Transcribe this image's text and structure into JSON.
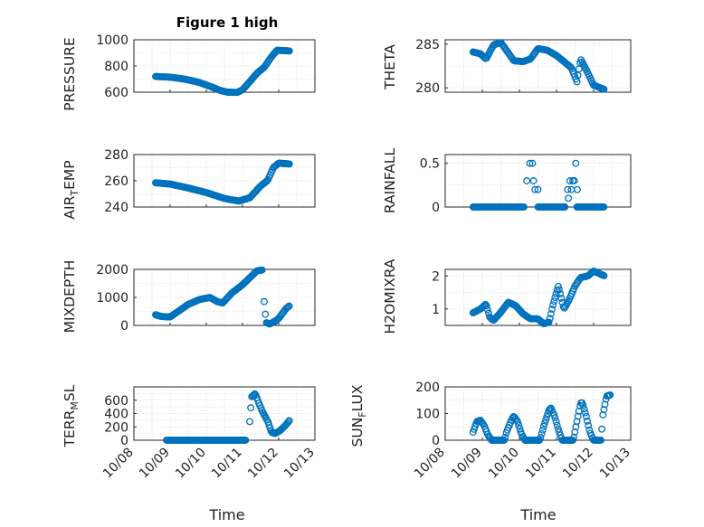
{
  "figure": {
    "title": "Figure 1 high",
    "xlabel": "Time",
    "x_ticklabels": [
      "10/08",
      "10/09",
      "10/10",
      "10/11",
      "10/12",
      "10/13"
    ],
    "marker_color": "#0072BD"
  },
  "chart_data": [
    {
      "type": "scatter",
      "title": "Figure 1 high",
      "ylabel": "PRESSURE",
      "ylim": [
        600,
        1000
      ],
      "yticks": [
        600,
        800,
        1000
      ],
      "xlim": [
        0,
        5
      ],
      "xlabel": "",
      "knots": [
        [
          0.6,
          720
        ],
        [
          1.0,
          715
        ],
        [
          1.4,
          700
        ],
        [
          1.8,
          675
        ],
        [
          2.1,
          645
        ],
        [
          2.4,
          612
        ],
        [
          2.6,
          600
        ],
        [
          2.85,
          598
        ],
        [
          3.0,
          618
        ],
        [
          3.2,
          680
        ],
        [
          3.4,
          745
        ],
        [
          3.6,
          790
        ],
        [
          3.8,
          870
        ],
        [
          3.95,
          920
        ],
        [
          4.3,
          915
        ]
      ],
      "grid": true
    },
    {
      "type": "scatter",
      "ylabel": "THETA",
      "ylim": [
        279.5,
        285.5
      ],
      "yticks": [
        280,
        285
      ],
      "xlim": [
        0,
        5
      ],
      "knots": [
        [
          0.75,
          284.1
        ],
        [
          0.95,
          283.9
        ],
        [
          1.1,
          283.3
        ],
        [
          1.3,
          284.9
        ],
        [
          1.5,
          285.2
        ],
        [
          1.7,
          284.0
        ],
        [
          1.85,
          283.1
        ],
        [
          2.1,
          283.0
        ],
        [
          2.3,
          283.3
        ],
        [
          2.5,
          284.5
        ],
        [
          2.75,
          284.3
        ],
        [
          3.0,
          283.7
        ],
        [
          3.2,
          283.0
        ],
        [
          3.4,
          282.3
        ],
        [
          3.55,
          280.7
        ],
        [
          3.65,
          283.3
        ],
        [
          3.8,
          282.1
        ],
        [
          4.0,
          280.3
        ],
        [
          4.3,
          279.8
        ]
      ],
      "grid": true
    },
    {
      "type": "scatter",
      "ylabel": "AIR_TEMP",
      "ylim": [
        240,
        280
      ],
      "yticks": [
        240,
        260,
        280
      ],
      "xlim": [
        0,
        5
      ],
      "knots": [
        [
          0.6,
          258.5
        ],
        [
          1.0,
          257.5
        ],
        [
          1.5,
          254.5
        ],
        [
          2.0,
          251
        ],
        [
          2.5,
          246.5
        ],
        [
          2.9,
          244.5
        ],
        [
          3.2,
          247
        ],
        [
          3.5,
          256
        ],
        [
          3.7,
          260.5
        ],
        [
          3.85,
          270
        ],
        [
          4.0,
          273.5
        ],
        [
          4.3,
          272.8
        ]
      ],
      "grid": true
    },
    {
      "type": "scatter",
      "ylabel": "RAINFALL",
      "ylim": [
        0,
        0.6
      ],
      "yticks": [
        0,
        0.5
      ],
      "xlim": [
        0,
        5
      ],
      "zero_runs": [
        [
          0.75,
          2.15
        ],
        [
          2.5,
          3.25
        ],
        [
          3.55,
          4.3
        ]
      ],
      "points": [
        [
          2.2,
          0.3
        ],
        [
          2.28,
          0.5
        ],
        [
          2.35,
          0.5
        ],
        [
          2.38,
          0.3
        ],
        [
          2.42,
          0.2
        ],
        [
          2.5,
          0.2
        ],
        [
          3.3,
          0.2
        ],
        [
          3.32,
          0.1
        ],
        [
          3.36,
          0.3
        ],
        [
          3.4,
          0.2
        ],
        [
          3.44,
          0.3
        ],
        [
          3.48,
          0.3
        ],
        [
          3.52,
          0.5
        ],
        [
          3.56,
          0.2
        ]
      ],
      "grid": true
    },
    {
      "type": "scatter",
      "ylabel": "MIXDEPTH",
      "ylim": [
        0,
        2000
      ],
      "yticks": [
        0,
        1000,
        2000
      ],
      "xlim": [
        0,
        5
      ],
      "knots": [
        [
          0.6,
          380
        ],
        [
          0.75,
          320
        ],
        [
          1.0,
          300
        ],
        [
          1.2,
          480
        ],
        [
          1.5,
          750
        ],
        [
          1.8,
          920
        ],
        [
          2.1,
          1000
        ],
        [
          2.3,
          850
        ],
        [
          2.45,
          800
        ],
        [
          2.7,
          1150
        ],
        [
          3.0,
          1450
        ],
        [
          3.2,
          1700
        ],
        [
          3.4,
          1950
        ],
        [
          3.55,
          1980
        ]
      ],
      "knots2": [
        [
          3.6,
          850
        ],
        [
          3.65,
          100
        ],
        [
          3.75,
          50
        ],
        [
          3.9,
          150
        ],
        [
          4.0,
          250
        ],
        [
          4.2,
          600
        ],
        [
          4.3,
          700
        ]
      ],
      "grid": true
    },
    {
      "type": "scatter",
      "ylabel": "H2OMIXRA",
      "ylim": [
        0.5,
        2.2
      ],
      "yticks": [
        1,
        2
      ],
      "xlim": [
        0,
        5
      ],
      "knots": [
        [
          0.75,
          0.88
        ],
        [
          0.95,
          1.0
        ],
        [
          1.1,
          1.15
        ],
        [
          1.2,
          0.75
        ],
        [
          1.3,
          0.65
        ],
        [
          1.5,
          0.9
        ],
        [
          1.7,
          1.2
        ],
        [
          1.9,
          1.1
        ],
        [
          2.1,
          0.85
        ],
        [
          2.3,
          0.7
        ],
        [
          2.5,
          0.7
        ],
        [
          2.65,
          0.55
        ],
        [
          2.8,
          0.6
        ],
        [
          2.9,
          1.1
        ],
        [
          3.05,
          1.7
        ],
        [
          3.2,
          1.0
        ],
        [
          3.35,
          1.3
        ],
        [
          3.5,
          1.7
        ],
        [
          3.65,
          1.95
        ],
        [
          3.85,
          2.0
        ],
        [
          4.0,
          2.15
        ],
        [
          4.3,
          2.0
        ]
      ],
      "grid": true
    },
    {
      "type": "scatter",
      "ylabel": "TERR_MSL",
      "ylim": [
        0,
        800
      ],
      "yticks": [
        0,
        200,
        400,
        600
      ],
      "xlim": [
        0,
        5
      ],
      "zero_run": [
        0.9,
        3.1
      ],
      "knots": [
        [
          3.2,
          280
        ],
        [
          3.25,
          650
        ],
        [
          3.35,
          700
        ],
        [
          3.45,
          560
        ],
        [
          3.55,
          430
        ],
        [
          3.7,
          280
        ],
        [
          3.8,
          120
        ],
        [
          3.9,
          100
        ],
        [
          4.05,
          150
        ],
        [
          4.2,
          230
        ],
        [
          4.3,
          300
        ]
      ],
      "grid": true
    },
    {
      "type": "scatter",
      "ylabel": "SUN_FLUX",
      "ylim": [
        0,
        200
      ],
      "yticks": [
        0,
        100,
        200
      ],
      "xlim": [
        0,
        5
      ],
      "knots": [
        [
          0.75,
          30
        ],
        [
          0.85,
          70
        ],
        [
          0.95,
          75
        ],
        [
          1.05,
          55
        ],
        [
          1.15,
          20
        ],
        [
          1.25,
          0
        ],
        [
          1.6,
          0
        ],
        [
          1.65,
          30
        ],
        [
          1.8,
          80
        ],
        [
          1.85,
          90
        ],
        [
          1.95,
          70
        ],
        [
          2.05,
          25
        ],
        [
          2.15,
          0
        ],
        [
          2.55,
          0
        ],
        [
          2.65,
          50
        ],
        [
          2.8,
          115
        ],
        [
          2.85,
          120
        ],
        [
          2.95,
          90
        ],
        [
          3.05,
          40
        ],
        [
          3.15,
          0
        ],
        [
          3.45,
          0
        ],
        [
          3.55,
          70
        ],
        [
          3.65,
          140
        ],
        [
          3.7,
          140
        ],
        [
          3.8,
          90
        ],
        [
          3.9,
          30
        ],
        [
          4.0,
          0
        ],
        [
          4.2,
          0
        ],
        [
          4.25,
          95
        ],
        [
          4.35,
          165
        ],
        [
          4.45,
          170
        ]
      ],
      "grid": true
    }
  ]
}
